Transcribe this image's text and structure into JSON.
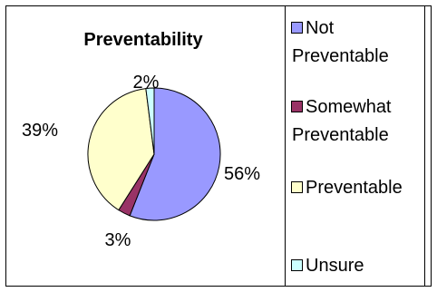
{
  "chart_data": {
    "type": "pie",
    "title": "Preventability",
    "slices": [
      {
        "name": "Not Preventable",
        "label_lines": [
          "Not",
          "Preventable"
        ],
        "value": 56,
        "display": "56%",
        "color": "#9999ff"
      },
      {
        "name": "Somewhat Preventable",
        "label_lines": [
          "Somewhat",
          "Preventable"
        ],
        "value": 3,
        "display": "3%",
        "color": "#993366"
      },
      {
        "name": "Preventable",
        "label_lines": [
          "Preventable"
        ],
        "value": 39,
        "display": "39%",
        "color": "#ffffcc"
      },
      {
        "name": "Unsure",
        "label_lines": [
          "Unsure"
        ],
        "value": 2,
        "display": "2%",
        "color": "#ccffff"
      }
    ],
    "legend_position": "right"
  }
}
